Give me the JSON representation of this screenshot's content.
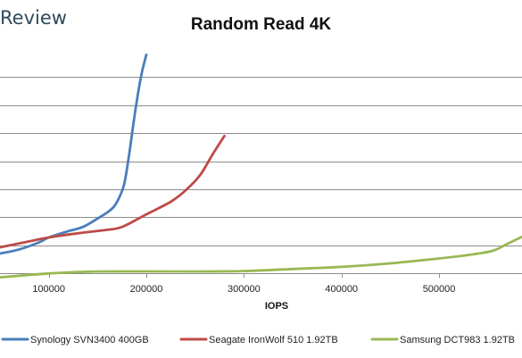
{
  "brand": {
    "text": "Review",
    "color": "#2e4a5c"
  },
  "chart_data": {
    "type": "line",
    "title": "Random Read 4K",
    "xlabel": "IOPS",
    "ylabel": "",
    "xlim": [
      50000,
      585000
    ],
    "ylim": [
      0,
      16
    ],
    "x_ticks": [
      100000,
      200000,
      300000,
      400000,
      500000
    ],
    "x_tick_labels": [
      "100000",
      "200000",
      "300000",
      "400000",
      "500000"
    ],
    "y_grid_values": [
      2,
      4,
      6,
      8,
      10,
      12,
      14
    ],
    "grid": "horizontal",
    "legend_position": "bottom",
    "series": [
      {
        "name": "Synology SVN3400 400GB",
        "color": "#4a7ebb",
        "points": [
          [
            50000,
            1.4
          ],
          [
            70000,
            1.7
          ],
          [
            90000,
            2.2
          ],
          [
            100000,
            2.55
          ],
          [
            120000,
            3.0
          ],
          [
            135000,
            3.3
          ],
          [
            150000,
            3.9
          ],
          [
            163000,
            4.5
          ],
          [
            170000,
            5.1
          ],
          [
            177000,
            6.3
          ],
          [
            182000,
            8.3
          ],
          [
            186000,
            10.3
          ],
          [
            190000,
            12.2
          ],
          [
            195000,
            14.2
          ],
          [
            200000,
            15.6
          ]
        ]
      },
      {
        "name": "Seagate IronWolf 510 1.92TB",
        "color": "#be4b48",
        "points": [
          [
            50000,
            1.85
          ],
          [
            75000,
            2.2
          ],
          [
            100000,
            2.55
          ],
          [
            130000,
            2.85
          ],
          [
            160000,
            3.1
          ],
          [
            175000,
            3.3
          ],
          [
            200000,
            4.2
          ],
          [
            225000,
            5.1
          ],
          [
            240000,
            5.9
          ],
          [
            255000,
            7.0
          ],
          [
            268000,
            8.5
          ],
          [
            280000,
            9.8
          ]
        ]
      },
      {
        "name": "Samsung DCT983 1.92TB",
        "color": "#98b954",
        "points": [
          [
            50000,
            -0.3
          ],
          [
            100000,
            -0.02
          ],
          [
            150000,
            0.12
          ],
          [
            250000,
            0.12
          ],
          [
            300000,
            0.15
          ],
          [
            350000,
            0.3
          ],
          [
            400000,
            0.45
          ],
          [
            450000,
            0.7
          ],
          [
            500000,
            1.05
          ],
          [
            530000,
            1.3
          ],
          [
            555000,
            1.6
          ],
          [
            570000,
            2.1
          ],
          [
            585000,
            2.6
          ]
        ]
      }
    ]
  }
}
